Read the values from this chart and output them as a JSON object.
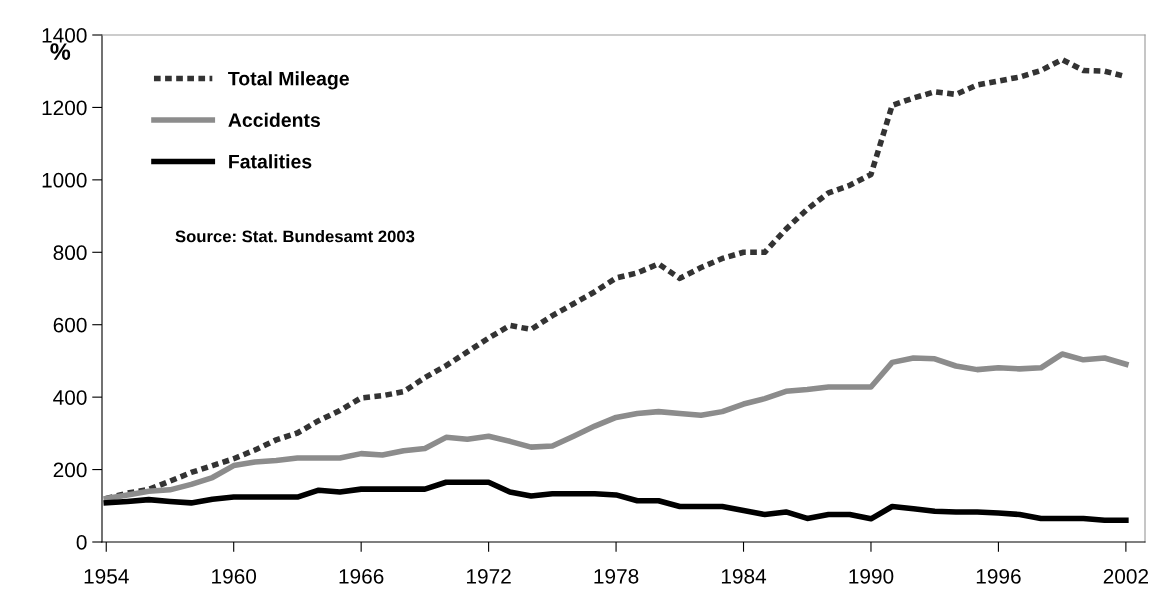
{
  "chart_data": {
    "type": "line",
    "ylabel": "%",
    "x": [
      1954,
      1955,
      1956,
      1957,
      1958,
      1959,
      1960,
      1961,
      1962,
      1963,
      1964,
      1965,
      1966,
      1967,
      1968,
      1969,
      1970,
      1971,
      1972,
      1973,
      1974,
      1975,
      1976,
      1977,
      1978,
      1979,
      1980,
      1981,
      1982,
      1983,
      1984,
      1985,
      1986,
      1987,
      1988,
      1989,
      1990,
      1991,
      1992,
      1993,
      1994,
      1995,
      1996,
      1997,
      1998,
      1999,
      2000,
      2001,
      2002
    ],
    "series": [
      {
        "name": "Total Mileage",
        "color": "#333333",
        "line_style": "dashed",
        "values": [
          120,
          135,
          145,
          168,
          192,
          211,
          230,
          254,
          282,
          301,
          335,
          363,
          398,
          404,
          415,
          454,
          487,
          525,
          563,
          598,
          587,
          625,
          658,
          691,
          729,
          743,
          768,
          728,
          758,
          783,
          800,
          800,
          864,
          919,
          964,
          985,
          1015,
          1206,
          1226,
          1243,
          1236,
          1262,
          1273,
          1284,
          1302,
          1332,
          1302,
          1300,
          1285
        ]
      },
      {
        "name": "Accidents",
        "color": "#8c8c8c",
        "line_style": "solid",
        "values": [
          120,
          130,
          140,
          144,
          159,
          178,
          211,
          221,
          225,
          232,
          232,
          232,
          244,
          240,
          252,
          258,
          289,
          284,
          292,
          278,
          262,
          265,
          292,
          320,
          344,
          355,
          360,
          355,
          350,
          360,
          381,
          396,
          416,
          421,
          428,
          428,
          428,
          496,
          508,
          506,
          486,
          476,
          481,
          478,
          481,
          519,
          503,
          508,
          491
        ]
      },
      {
        "name": "Fatalities",
        "color": "#000000",
        "line_style": "solid",
        "values": [
          108,
          112,
          117,
          112,
          108,
          118,
          124,
          124,
          124,
          124,
          143,
          138,
          146,
          146,
          146,
          146,
          165,
          165,
          165,
          138,
          127,
          133,
          133,
          133,
          130,
          114,
          114,
          98,
          98,
          98,
          87,
          76,
          83,
          65,
          76,
          76,
          64,
          98,
          92,
          85,
          83,
          83,
          80,
          76,
          65,
          65,
          65,
          60,
          60
        ]
      }
    ],
    "xlim": [
      1953.8,
      2002.9
    ],
    "xticks": [
      1954,
      1960,
      1966,
      1972,
      1978,
      1984,
      1990,
      1996,
      2002
    ],
    "ylim": [
      0,
      1400
    ],
    "yticks": [
      0,
      200,
      400,
      600,
      800,
      1000,
      1200,
      1400
    ],
    "legend": "top left",
    "grid": false,
    "annotations": [
      {
        "text": "Source: Stat. Bundesamt 2003"
      }
    ]
  }
}
